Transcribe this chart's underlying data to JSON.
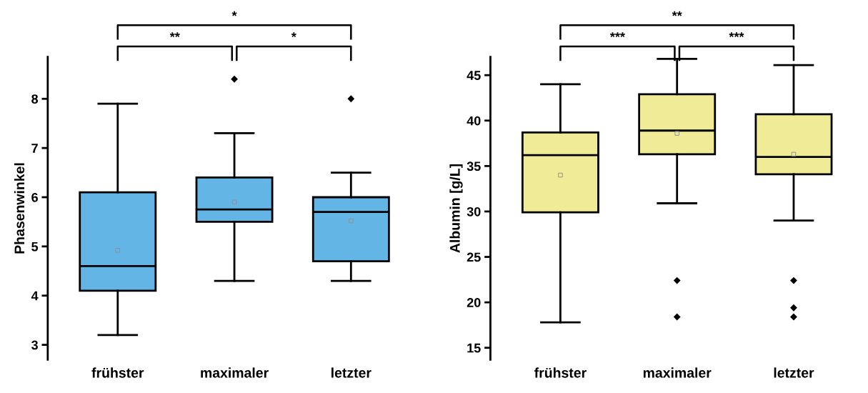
{
  "chart_data": [
    {
      "type": "box",
      "ylabel": "Phasenwinkel",
      "categories": [
        "frühster",
        "maximaler",
        "letzter"
      ],
      "color": "#63b5e5",
      "ylim": [
        2.7,
        8.85
      ],
      "yticks": [
        3,
        4,
        5,
        6,
        7,
        8
      ],
      "grid": false,
      "legend": false,
      "boxes": [
        {
          "low": 3.2,
          "q1": 4.1,
          "median": 4.6,
          "q3": 6.1,
          "high": 7.9,
          "mean": 4.92
        },
        {
          "low": 4.3,
          "q1": 5.5,
          "median": 5.75,
          "q3": 6.4,
          "high": 7.3,
          "mean": 5.9,
          "outliers": [
            8.4
          ]
        },
        {
          "low": 4.3,
          "q1": 4.7,
          "median": 5.7,
          "q3": 6.0,
          "high": 6.5,
          "mean": 5.52,
          "outliers": [
            8.0
          ]
        }
      ],
      "annotations": [
        "*",
        "**",
        "*"
      ]
    },
    {
      "type": "box",
      "ylabel": "Albumin [g/L]",
      "categories": [
        "frühster",
        "maximaler",
        "letzter"
      ],
      "color": "#f0eb96",
      "ylim": [
        13.7,
        47
      ],
      "yticks": [
        15,
        20,
        25,
        30,
        35,
        40,
        45
      ],
      "grid": false,
      "legend": false,
      "boxes": [
        {
          "low": 17.8,
          "q1": 29.9,
          "median": 36.2,
          "q3": 38.7,
          "high": 44.0,
          "mean": 34.0
        },
        {
          "low": 30.9,
          "q1": 36.3,
          "median": 38.9,
          "q3": 42.9,
          "high": 46.8,
          "mean": 38.6,
          "outliers": [
            22.4,
            18.4
          ]
        },
        {
          "low": 29.0,
          "q1": 34.1,
          "median": 36.0,
          "q3": 40.7,
          "high": 46.1,
          "mean": 36.3,
          "outliers": [
            22.4,
            19.4,
            18.4
          ]
        }
      ],
      "annotations": [
        "**",
        "***",
        "***"
      ]
    }
  ]
}
